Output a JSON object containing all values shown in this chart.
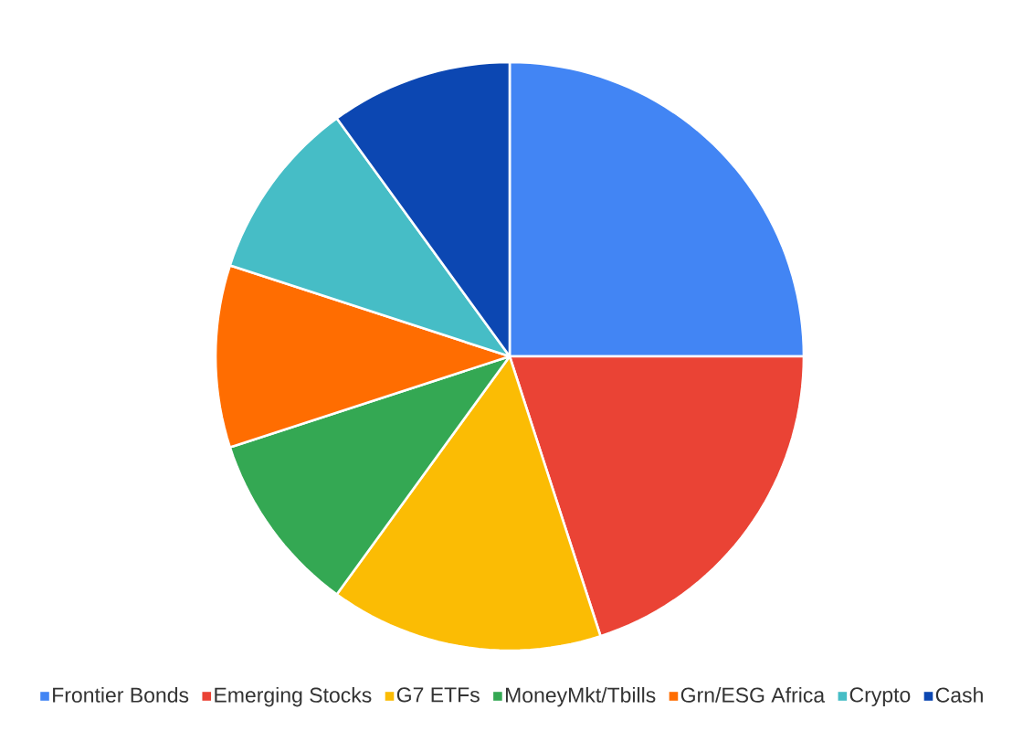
{
  "chart_data": {
    "type": "pie",
    "categories": [
      "Frontier Bonds",
      "Emerging Stocks",
      "G7 ETFs",
      "MoneyMkt/Tbills",
      "Grn/ESG Africa",
      "Crypto",
      "Cash"
    ],
    "values": [
      25,
      20,
      15,
      10,
      10,
      10,
      10
    ],
    "colors": [
      "#4285f4",
      "#ea4335",
      "#fbbc04",
      "#34a853",
      "#ff6d01",
      "#46bdc6",
      "#0c47b2"
    ],
    "legend": "bottom"
  }
}
